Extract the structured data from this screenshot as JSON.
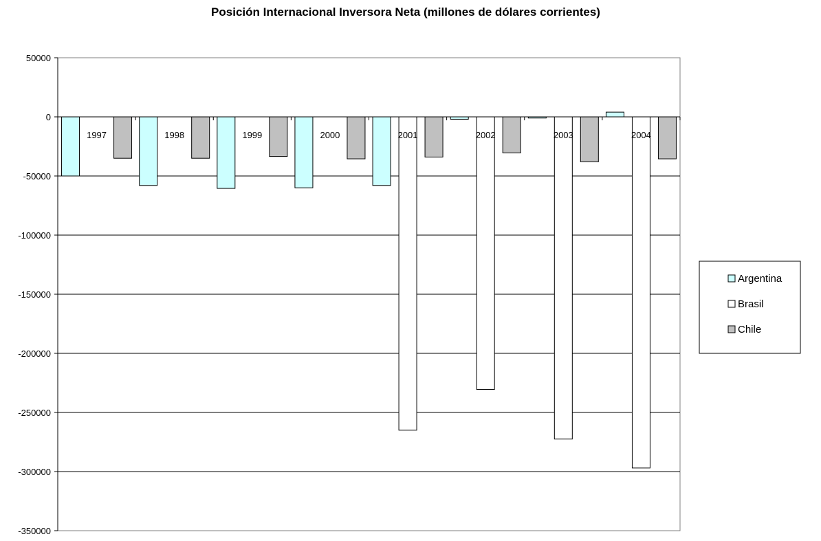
{
  "chart_data": {
    "type": "bar",
    "title": "Posición Internacional Inversora Neta (millones de dólares corrientes)",
    "xlabel": "",
    "ylabel": "",
    "categories": [
      "1997",
      "1998",
      "1999",
      "2000",
      "2001",
      "2002",
      "2003",
      "2004"
    ],
    "series": [
      {
        "name": "Argentina",
        "color": "#ccffff",
        "values": [
          -50000,
          -58000,
          -60500,
          -60000,
          -58000,
          -2000,
          -1000,
          4000
        ]
      },
      {
        "name": "Brasil",
        "color": "#ffffff",
        "values": [
          null,
          null,
          null,
          null,
          -265000,
          -230500,
          -272500,
          -297000
        ]
      },
      {
        "name": "Chile",
        "color": "#c0c0c0",
        "values": [
          -35000,
          -35000,
          -33500,
          -35500,
          -34000,
          -30500,
          -38000,
          -35500
        ]
      }
    ],
    "ylim": [
      -350000,
      50000
    ],
    "yticks": [
      "50000",
      "0",
      "-50000",
      "-100000",
      "-150000",
      "-200000",
      "-250000",
      "-300000",
      "-350000"
    ],
    "ytick_values": [
      50000,
      0,
      -50000,
      -100000,
      -150000,
      -200000,
      -250000,
      -300000,
      -350000
    ],
    "grid": true,
    "legend_position": "right"
  }
}
